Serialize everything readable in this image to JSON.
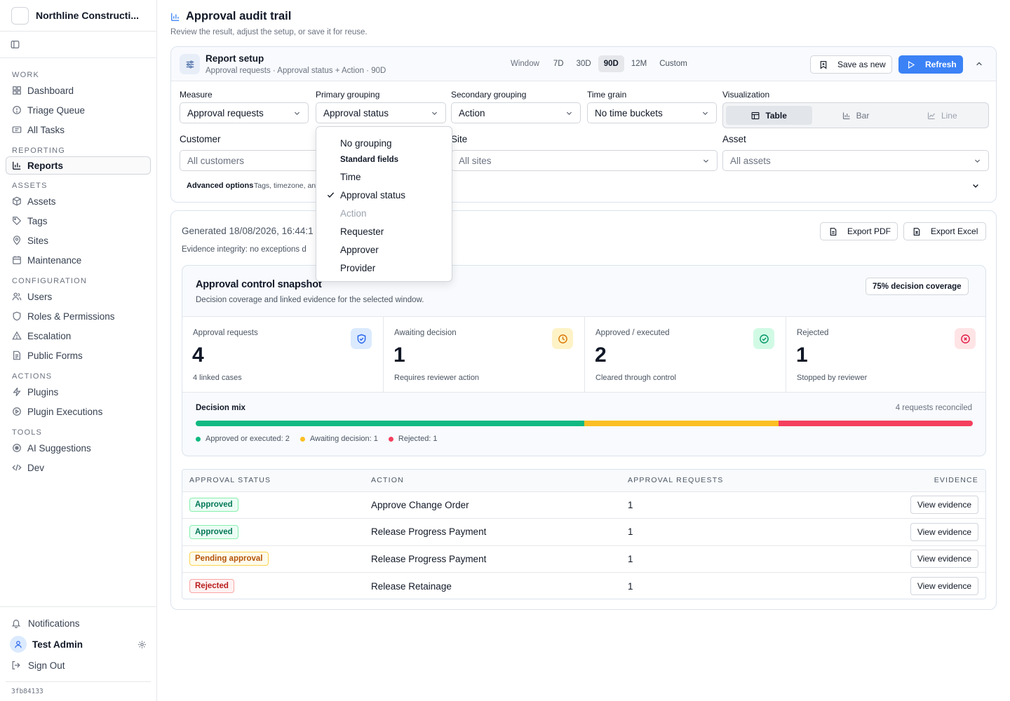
{
  "sidebar": {
    "org_name": "Northline Constructi...",
    "sections": {
      "work": "WORK",
      "reporting": "REPORTING",
      "assets": "ASSETS",
      "configuration": "CONFIGURATION",
      "actions": "ACTIONS",
      "tools": "TOOLS"
    },
    "items": {
      "dashboard": "Dashboard",
      "triage_queue": "Triage Queue",
      "all_tasks": "All Tasks",
      "reports": "Reports",
      "assets": "Assets",
      "tags": "Tags",
      "sites": "Sites",
      "maintenance": "Maintenance",
      "users": "Users",
      "roles": "Roles & Permissions",
      "escalation": "Escalation",
      "public_forms": "Public Forms",
      "plugins": "Plugins",
      "plugin_executions": "Plugin Executions",
      "ai_suggestions": "AI Suggestions",
      "dev": "Dev"
    },
    "active_item": "Reports",
    "notifications": "Notifications",
    "user_name": "Test Admin",
    "sign_out": "Sign Out",
    "version": "3fb84133"
  },
  "header": {
    "title": "Approval audit trail",
    "subtitle": "Review the result, adjust the setup, or save it for reuse."
  },
  "setup": {
    "title": "Report setup",
    "summary": "Approval requests · Approval status + Action · 90D",
    "window_label": "Window",
    "windows": [
      "7D",
      "30D",
      "90D",
      "12M",
      "Custom"
    ],
    "active_window": "90D",
    "save_label": "Save as new",
    "refresh_label": "Refresh",
    "measure": {
      "label": "Measure",
      "value": "Approval requests"
    },
    "primary": {
      "label": "Primary grouping",
      "value": "Approval status"
    },
    "secondary": {
      "label": "Secondary grouping",
      "value": "Action"
    },
    "grain": {
      "label": "Time grain",
      "value": "No time buckets"
    },
    "visualization": {
      "label": "Visualization",
      "options": [
        "Table",
        "Bar",
        "Line"
      ],
      "selected": "Table"
    },
    "customer": {
      "label": "Customer",
      "placeholder": "All customers"
    },
    "site": {
      "label": "Site",
      "placeholder": "All sites"
    },
    "asset": {
      "label": "Asset",
      "placeholder": "All assets"
    },
    "advanced_label": "Advanced options",
    "advanced_sub": "Tags, timezone, an"
  },
  "results": {
    "generated": "Generated 18/08/2026, 16:44:1",
    "integrity": "Evidence integrity: no exceptions d",
    "export_pdf": "Export PDF",
    "export_excel": "Export Excel"
  },
  "snapshot": {
    "title": "Approval control snapshot",
    "subtitle": "Decision coverage and linked evidence for the selected window.",
    "coverage_badge": "75% decision coverage",
    "kpis": [
      {
        "label": "Approval requests",
        "value": "4",
        "sub": "4 linked cases",
        "icon": "shield-check-icon",
        "color": "#2563eb",
        "bg": "#dbeafe"
      },
      {
        "label": "Awaiting decision",
        "value": "1",
        "sub": "Requires reviewer action",
        "icon": "clock-icon",
        "color": "#d97706",
        "bg": "#fef3c7"
      },
      {
        "label": "Approved / executed",
        "value": "2",
        "sub": "Cleared through control",
        "icon": "check-circle-icon",
        "color": "#059669",
        "bg": "#d1fae5"
      },
      {
        "label": "Rejected",
        "value": "1",
        "sub": "Stopped by reviewer",
        "icon": "x-circle-icon",
        "color": "#e11d48",
        "bg": "#ffe4e6"
      }
    ],
    "mix_label": "Decision mix",
    "mix_right": "4 requests reconciled",
    "mix": [
      {
        "label": "Approved or executed: 2",
        "value": 2,
        "color": "#10b981"
      },
      {
        "label": "Awaiting decision: 1",
        "value": 1,
        "color": "#fbbf24"
      },
      {
        "label": "Rejected: 1",
        "value": 1,
        "color": "#f43f5e"
      }
    ]
  },
  "table": {
    "headers": [
      "APPROVAL STATUS",
      "ACTION",
      "APPROVAL REQUESTS",
      "EVIDENCE"
    ],
    "rows": [
      {
        "status": "Approved",
        "action": "Approve Change Order",
        "count": "1",
        "evidence": "View evidence",
        "tone": "green"
      },
      {
        "status": "Approved",
        "action": "Release Progress Payment",
        "count": "1",
        "evidence": "View evidence",
        "tone": "green"
      },
      {
        "status": "Pending approval",
        "action": "Release Progress Payment",
        "count": "1",
        "evidence": "View evidence",
        "tone": "amber"
      },
      {
        "status": "Rejected",
        "action": "Release Retainage",
        "count": "1",
        "evidence": "View evidence",
        "tone": "red"
      }
    ]
  },
  "dropdown": {
    "no_grouping": "No grouping",
    "standard_header": "Standard fields",
    "options": [
      {
        "label": "Time",
        "checked": false,
        "disabled": false
      },
      {
        "label": "Approval status",
        "checked": true,
        "disabled": false
      },
      {
        "label": "Action",
        "checked": false,
        "disabled": true
      },
      {
        "label": "Requester",
        "checked": false,
        "disabled": false
      },
      {
        "label": "Approver",
        "checked": false,
        "disabled": false
      },
      {
        "label": "Provider",
        "checked": false,
        "disabled": false
      }
    ]
  }
}
